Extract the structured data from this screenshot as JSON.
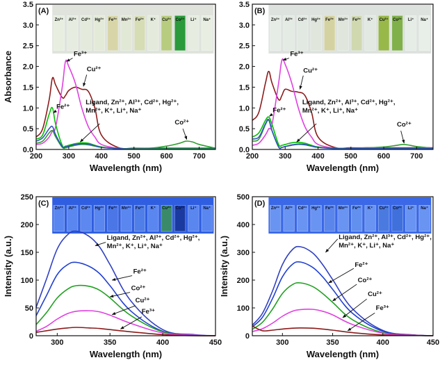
{
  "chart_data": [
    {
      "type": "line",
      "label": "(A)",
      "xlabel": "Wavelength (nm)",
      "ylabel": "Absorbance",
      "xlim": [
        200,
        750
      ],
      "ylim": [
        0,
        3.5
      ],
      "xticks": [
        200,
        300,
        400,
        500,
        600,
        700
      ],
      "yticks": [
        {
          "value": 0,
          "label": "0.0"
        },
        0.5,
        {
          "value": 1,
          "label": "1.0"
        },
        1.5,
        {
          "value": 2,
          "label": "2.0"
        },
        2.5,
        {
          "value": 3,
          "label": "3.0"
        },
        3.5
      ],
      "inset_labels": [
        "Zn²⁺",
        "Al³⁺",
        "Cd²⁺",
        "Hg²⁺",
        "Fe³⁺",
        "Mn²⁺",
        "Fe²⁺",
        "K⁺",
        "Cu²⁺",
        "Co²⁺",
        "Li⁺",
        "Na⁺"
      ],
      "x": [
        200,
        220,
        240,
        250,
        260,
        280,
        290,
        300,
        320,
        340,
        360,
        380,
        400,
        450,
        500,
        550,
        600,
        640,
        660,
        680,
        700,
        750
      ],
      "series": [
        {
          "name": "Fe³⁺",
          "color": "#8b1a1a",
          "values": [
            0.3,
            0.5,
            1.2,
            1.72,
            1.55,
            1.25,
            1.3,
            1.42,
            1.5,
            1.45,
            1.4,
            1.0,
            0.35,
            0.05,
            0.03,
            0.03,
            0.03,
            0.03,
            0.03,
            0.03,
            0.03,
            0.03
          ]
        },
        {
          "name": "Cu²⁺",
          "color": "#e040e0",
          "values": [
            0.12,
            0.15,
            0.3,
            0.45,
            0.55,
            1.5,
            2.12,
            2.0,
            1.6,
            1.0,
            0.55,
            0.3,
            0.12,
            0.03,
            0.02,
            0.02,
            0.02,
            0.02,
            0.02,
            0.02,
            0.02,
            0.02
          ]
        },
        {
          "name": "Fe²⁺",
          "color": "#00c000",
          "values": [
            0.25,
            0.35,
            0.85,
            1.0,
            0.6,
            0.1,
            0.08,
            0.1,
            0.14,
            0.16,
            0.15,
            0.1,
            0.06,
            0.02,
            0.02,
            0.02,
            0.02,
            0.02,
            0.02,
            0.02,
            0.02,
            0.02
          ]
        },
        {
          "name": "Co²⁺",
          "color": "#2e9e2e",
          "values": [
            0.15,
            0.2,
            0.4,
            0.45,
            0.3,
            0.05,
            0.04,
            0.06,
            0.1,
            0.12,
            0.11,
            0.08,
            0.05,
            0.02,
            0.02,
            0.03,
            0.08,
            0.15,
            0.2,
            0.18,
            0.12,
            0.03
          ]
        },
        {
          "name": "Ligand, Zn²⁺, Al³⁺, Cd²⁺, Hg²⁺, Mn²⁺, K⁺, Li⁺, Na⁺",
          "color": "#3050c0",
          "values": [
            0.2,
            0.28,
            0.5,
            0.55,
            0.35,
            0.07,
            0.06,
            0.08,
            0.12,
            0.14,
            0.13,
            0.09,
            0.05,
            0.02,
            0.01,
            0.01,
            0.01,
            0.01,
            0.01,
            0.01,
            0.01,
            0.01
          ]
        }
      ]
    },
    {
      "type": "line",
      "label": "(B)",
      "xlabel": "Wavelength (nm)",
      "xlim": [
        200,
        750
      ],
      "ylim": [
        0,
        3.5
      ],
      "xticks": [
        200,
        300,
        400,
        500,
        600,
        700
      ],
      "yticks": [
        {
          "value": 0,
          "label": "0.0"
        },
        0.5,
        {
          "value": 1,
          "label": "1.0"
        },
        1.5,
        {
          "value": 2,
          "label": "2.0"
        },
        2.5,
        {
          "value": 3,
          "label": "3.0"
        },
        3.5
      ],
      "inset_labels": [
        "Zn²⁺",
        "Al³⁺",
        "Cd²⁺",
        "Hg²⁺",
        "Fe³⁺",
        "Mn²⁺",
        "Fe²⁺",
        "K⁺",
        "Cu²⁺",
        "Co²⁺",
        "Li⁺",
        "Na⁺"
      ],
      "x": [
        200,
        220,
        240,
        250,
        260,
        280,
        290,
        300,
        320,
        340,
        360,
        380,
        400,
        450,
        500,
        550,
        600,
        640,
        660,
        680,
        700,
        750
      ],
      "series": [
        {
          "name": "Fe³⁺",
          "color": "#8b1a1a",
          "values": [
            0.7,
            0.9,
            1.6,
            1.88,
            1.6,
            1.2,
            1.3,
            1.45,
            1.4,
            1.38,
            1.3,
            0.9,
            0.3,
            0.05,
            0.04,
            0.04,
            0.04,
            0.04,
            0.04,
            0.04,
            0.04,
            0.04
          ]
        },
        {
          "name": "Cu²⁺",
          "color": "#e040e0",
          "values": [
            0.1,
            0.15,
            0.35,
            0.5,
            0.6,
            1.6,
            2.15,
            2.05,
            1.6,
            1.0,
            0.55,
            0.3,
            0.12,
            0.03,
            0.02,
            0.02,
            0.02,
            0.02,
            0.02,
            0.02,
            0.02,
            0.02
          ]
        },
        {
          "name": "Fe²⁺",
          "color": "#00c000",
          "values": [
            0.3,
            0.4,
            0.7,
            0.78,
            0.6,
            0.12,
            0.1,
            0.12,
            0.16,
            0.17,
            0.15,
            0.1,
            0.06,
            0.03,
            0.03,
            0.03,
            0.03,
            0.03,
            0.03,
            0.03,
            0.03,
            0.03
          ]
        },
        {
          "name": "Co²⁺",
          "color": "#2e9e2e",
          "values": [
            0.2,
            0.25,
            0.6,
            0.7,
            0.45,
            0.06,
            0.05,
            0.07,
            0.1,
            0.12,
            0.11,
            0.08,
            0.05,
            0.03,
            0.03,
            0.04,
            0.06,
            0.1,
            0.12,
            0.1,
            0.07,
            0.03
          ]
        },
        {
          "name": "Ligand, Zn²⁺, Al³⁺, Cd²⁺, Hg²⁺, Mn²⁺, K⁺, Li⁺, Na⁺",
          "color": "#3050c0",
          "values": [
            0.25,
            0.3,
            0.62,
            0.72,
            0.45,
            0.06,
            0.05,
            0.07,
            0.11,
            0.13,
            0.12,
            0.08,
            0.05,
            0.02,
            0.02,
            0.02,
            0.02,
            0.02,
            0.02,
            0.02,
            0.02,
            0.02
          ]
        }
      ]
    },
    {
      "type": "line",
      "label": "(C)",
      "xlabel": "Wavelength (nm)",
      "ylabel": "Intensity (a.u.)",
      "xlim": [
        280,
        450
      ],
      "ylim": [
        0,
        250
      ],
      "xticks": [
        300,
        350,
        400,
        450
      ],
      "yticks": [
        0,
        50,
        100,
        150,
        200,
        250
      ],
      "inset_labels": [
        "Zn²⁺",
        "Al³⁺",
        "Cd²⁺",
        "Hg²⁺",
        "Fe³⁺",
        "Mn²⁺",
        "Fe²⁺",
        "K⁺",
        "Cu²⁺",
        "Co²⁺",
        "Li⁺",
        "Na⁺"
      ],
      "x": [
        280,
        290,
        300,
        310,
        318,
        330,
        340,
        350,
        370,
        400,
        430,
        450
      ],
      "series": [
        {
          "name": "Ligand, Zn²⁺, Al³⁺, Cd²⁺, Hg²⁺, Mn²⁺, K⁺, Li⁺, Na⁺",
          "color": "#3040c0",
          "values": [
            51,
            103,
            156,
            182,
            188,
            179,
            160,
            128,
            62,
            11,
            2,
            0
          ]
        },
        {
          "name": "Fe²⁺",
          "color": "#2040d0",
          "values": [
            36,
            73,
            110,
            128,
            132,
            125,
            112,
            90,
            44,
            8,
            1,
            0
          ]
        },
        {
          "name": "Co²⁺",
          "color": "#20a020",
          "values": [
            20,
            42,
            68,
            84,
            90,
            89,
            82,
            68,
            36,
            7,
            1,
            0
          ]
        },
        {
          "name": "Cu²⁺",
          "color": "#e040e0",
          "values": [
            8,
            17,
            30,
            40,
            44,
            45,
            43,
            37,
            22,
            5,
            1,
            0
          ]
        },
        {
          "name": "Fe³⁺",
          "color": "#8b1a1a",
          "values": [
            6,
            9,
            12,
            14,
            15,
            14,
            13,
            11,
            7,
            2,
            0,
            0
          ]
        }
      ]
    },
    {
      "type": "line",
      "label": "(D)",
      "xlabel": "Wavelength (nm)",
      "ylabel": "Intensity (a.u.)",
      "xlim": [
        270,
        450
      ],
      "ylim": [
        0,
        500
      ],
      "xticks": [
        300,
        350,
        400,
        450
      ],
      "yticks": [
        0,
        100,
        200,
        300,
        400,
        500
      ],
      "inset_labels": [
        "Zn²⁺",
        "Al³⁺",
        "Cd²⁺",
        "Hg²⁺",
        "Fe³⁺",
        "Mn²⁺",
        "Fe²⁺",
        "K⁺",
        "Cu²⁺",
        "Co²⁺",
        "Li⁺",
        "Na⁺"
      ],
      "x": [
        270,
        280,
        290,
        300,
        310,
        318,
        330,
        340,
        350,
        370,
        400,
        430,
        450
      ],
      "series": [
        {
          "name": "Ligand, Zn²⁺, Al³⁺, Cd²⁺, Hg²⁺, Mn²⁺, K⁺, Li⁺, Na⁺",
          "color": "#3040c0",
          "values": [
            38,
            80,
            160,
            256,
            310,
            320,
            298,
            256,
            202,
            96,
            19,
            3,
            0
          ]
        },
        {
          "name": "Fe²⁺",
          "color": "#2040d0",
          "values": [
            32,
            66,
            133,
            212,
            257,
            265,
            246,
            212,
            167,
            80,
            16,
            3,
            0
          ]
        },
        {
          "name": "Co²⁺",
          "color": "#20a020",
          "values": [
            23,
            48,
            95,
            152,
            184,
            190,
            177,
            152,
            120,
            57,
            11,
            2,
            0
          ]
        },
        {
          "name": "Cu²⁺",
          "color": "#e040e0",
          "values": [
            15,
            25,
            45,
            70,
            88,
            94,
            95,
            88,
            75,
            40,
            9,
            2,
            0
          ]
        },
        {
          "name": "Fe³⁺",
          "color": "#8b1a1a",
          "values": [
            35,
            18,
            20,
            24,
            27,
            28,
            27,
            24,
            20,
            11,
            3,
            1,
            0
          ]
        }
      ]
    }
  ]
}
